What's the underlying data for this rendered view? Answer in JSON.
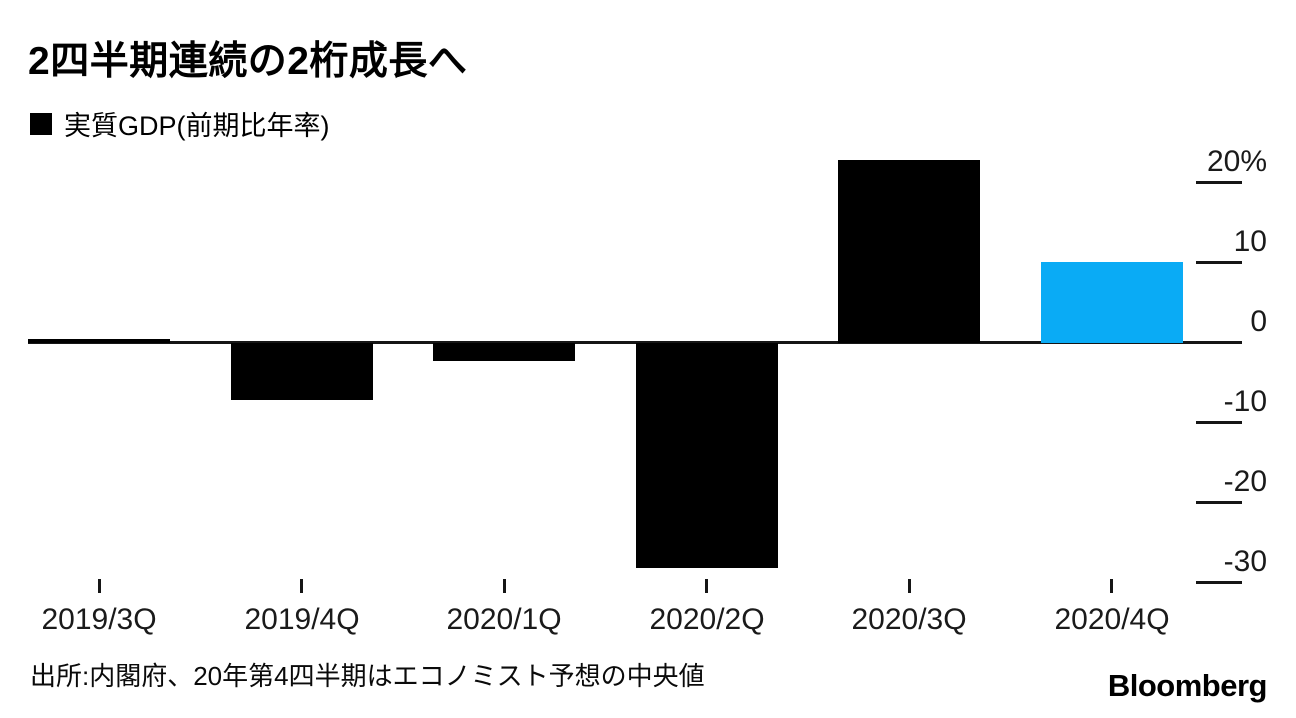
{
  "chart_data": {
    "type": "bar",
    "title": "2四半期連続の2桁成長へ",
    "legend_label": "実質GDP(前期比年率)",
    "legend_position": "top-left",
    "categories": [
      "2019/3Q",
      "2019/4Q",
      "2020/1Q",
      "2020/2Q",
      "2020/3Q",
      "2020/4Q"
    ],
    "values": [
      0.5,
      -7.1,
      -2.2,
      -28.1,
      22.9,
      10.1
    ],
    "bar_colors": [
      "#000000",
      "#000000",
      "#000000",
      "#000000",
      "#000000",
      "#0aabf5"
    ],
    "unit": "%",
    "y_ticks": [
      20,
      10,
      0,
      -10,
      -20,
      -30
    ],
    "y_tick_labels": [
      "20%",
      "10",
      "0",
      "-10",
      "-20",
      "-30"
    ],
    "y_axis_side": "right",
    "ylim": [
      -33,
      26
    ],
    "grid": false,
    "colors": {
      "bar": "#000000",
      "forecast_bar": "#0aabf5",
      "axis": "#161616",
      "background": "#ffffff"
    }
  },
  "footer": {
    "source": "出所:内閣府、20年第4四半期はエコノミスト予想の中央値",
    "brand": "Bloomberg"
  }
}
